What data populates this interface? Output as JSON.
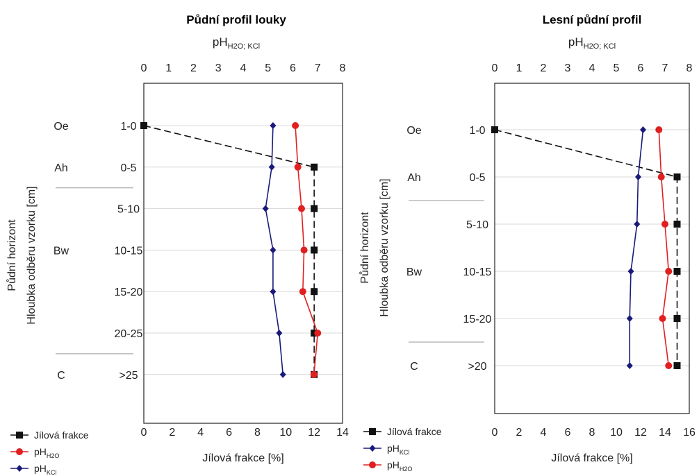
{
  "chart_data": [
    {
      "type": "line",
      "title": "Půdní profil louky",
      "top_axis": {
        "label_main": "pH",
        "label_sub": "H2O; KCl",
        "range": [
          0,
          8
        ],
        "ticks": [
          "0",
          "1",
          "2",
          "3",
          "4",
          "5",
          "6",
          "7",
          "8"
        ]
      },
      "bottom_axis": {
        "label": "Jílová frakce [%]",
        "range": [
          0,
          14
        ],
        "ticks": [
          "0",
          "2",
          "4",
          "6",
          "8",
          "10",
          "12",
          "14"
        ]
      },
      "ylabel_lines": [
        "Půdní horizont",
        "Hloubka odběru vzorku [cm]"
      ],
      "depths": [
        "1-0",
        "0-5",
        "5-10",
        "10-15",
        "15-20",
        "20-25",
        ">25"
      ],
      "horizons": [
        {
          "name": "Oe",
          "at": 0
        },
        {
          "name": "Ah",
          "at": 1
        },
        {
          "name": "Bw",
          "at": 3
        },
        {
          "name": "C",
          "at": 6
        }
      ],
      "horizon_separators_after": [
        1,
        5
      ],
      "series": [
        {
          "name": "Jílová frakce",
          "axis": "bottom",
          "color": "#111111",
          "marker": "square",
          "dashed": true,
          "values": [
            0,
            12,
            12,
            12,
            12,
            12,
            12
          ]
        },
        {
          "name": "pH",
          "name_sub": "H2O",
          "axis": "top",
          "color": "#e02020",
          "marker": "circle",
          "dashed": false,
          "values": [
            6.1,
            6.2,
            6.35,
            6.45,
            6.4,
            7.0,
            6.85
          ]
        },
        {
          "name": "pH",
          "name_sub": "KCl",
          "axis": "top",
          "color": "#1a1a7a",
          "marker": "diamond",
          "dashed": false,
          "values": [
            5.2,
            5.15,
            4.9,
            5.2,
            5.2,
            5.45,
            5.6
          ]
        }
      ],
      "legend_order": [
        0,
        1,
        2
      ]
    },
    {
      "type": "line",
      "title": "Lesní půdní profil",
      "top_axis": {
        "label_main": "pH",
        "label_sub": "H2O; KCl",
        "range": [
          0,
          8
        ],
        "ticks": [
          "0",
          "1",
          "2",
          "3",
          "4",
          "5",
          "6",
          "7",
          "8"
        ]
      },
      "bottom_axis": {
        "label": "Jílová frakce [%]",
        "range": [
          0,
          16
        ],
        "ticks": [
          "0",
          "2",
          "4",
          "6",
          "8",
          "10",
          "12",
          "14",
          "16"
        ]
      },
      "ylabel_lines": [
        "Půdní horizont",
        "Hloubka odběru vzorku [cm]"
      ],
      "depths": [
        "1-0",
        "0-5",
        "5-10",
        "10-15",
        "15-20",
        ">20"
      ],
      "horizons": [
        {
          "name": "Oe",
          "at": 0
        },
        {
          "name": "Ah",
          "at": 1
        },
        {
          "name": "Bw",
          "at": 3
        },
        {
          "name": "C",
          "at": 5
        }
      ],
      "horizon_separators_after": [
        1,
        4
      ],
      "series": [
        {
          "name": "Jílová frakce",
          "axis": "bottom",
          "color": "#111111",
          "marker": "square",
          "dashed": true,
          "values": [
            0,
            15,
            15,
            15,
            15,
            15
          ]
        },
        {
          "name": "pH",
          "name_sub": "KCl",
          "axis": "top",
          "color": "#1a1a7a",
          "marker": "diamond",
          "dashed": false,
          "values": [
            6.1,
            5.9,
            5.85,
            5.6,
            5.55,
            5.55
          ]
        },
        {
          "name": "pH",
          "name_sub": "H2O",
          "axis": "top",
          "color": "#e02020",
          "marker": "circle",
          "dashed": false,
          "values": [
            6.75,
            6.85,
            7.0,
            7.15,
            6.9,
            7.15
          ]
        }
      ],
      "legend_order": [
        0,
        1,
        2
      ]
    }
  ]
}
